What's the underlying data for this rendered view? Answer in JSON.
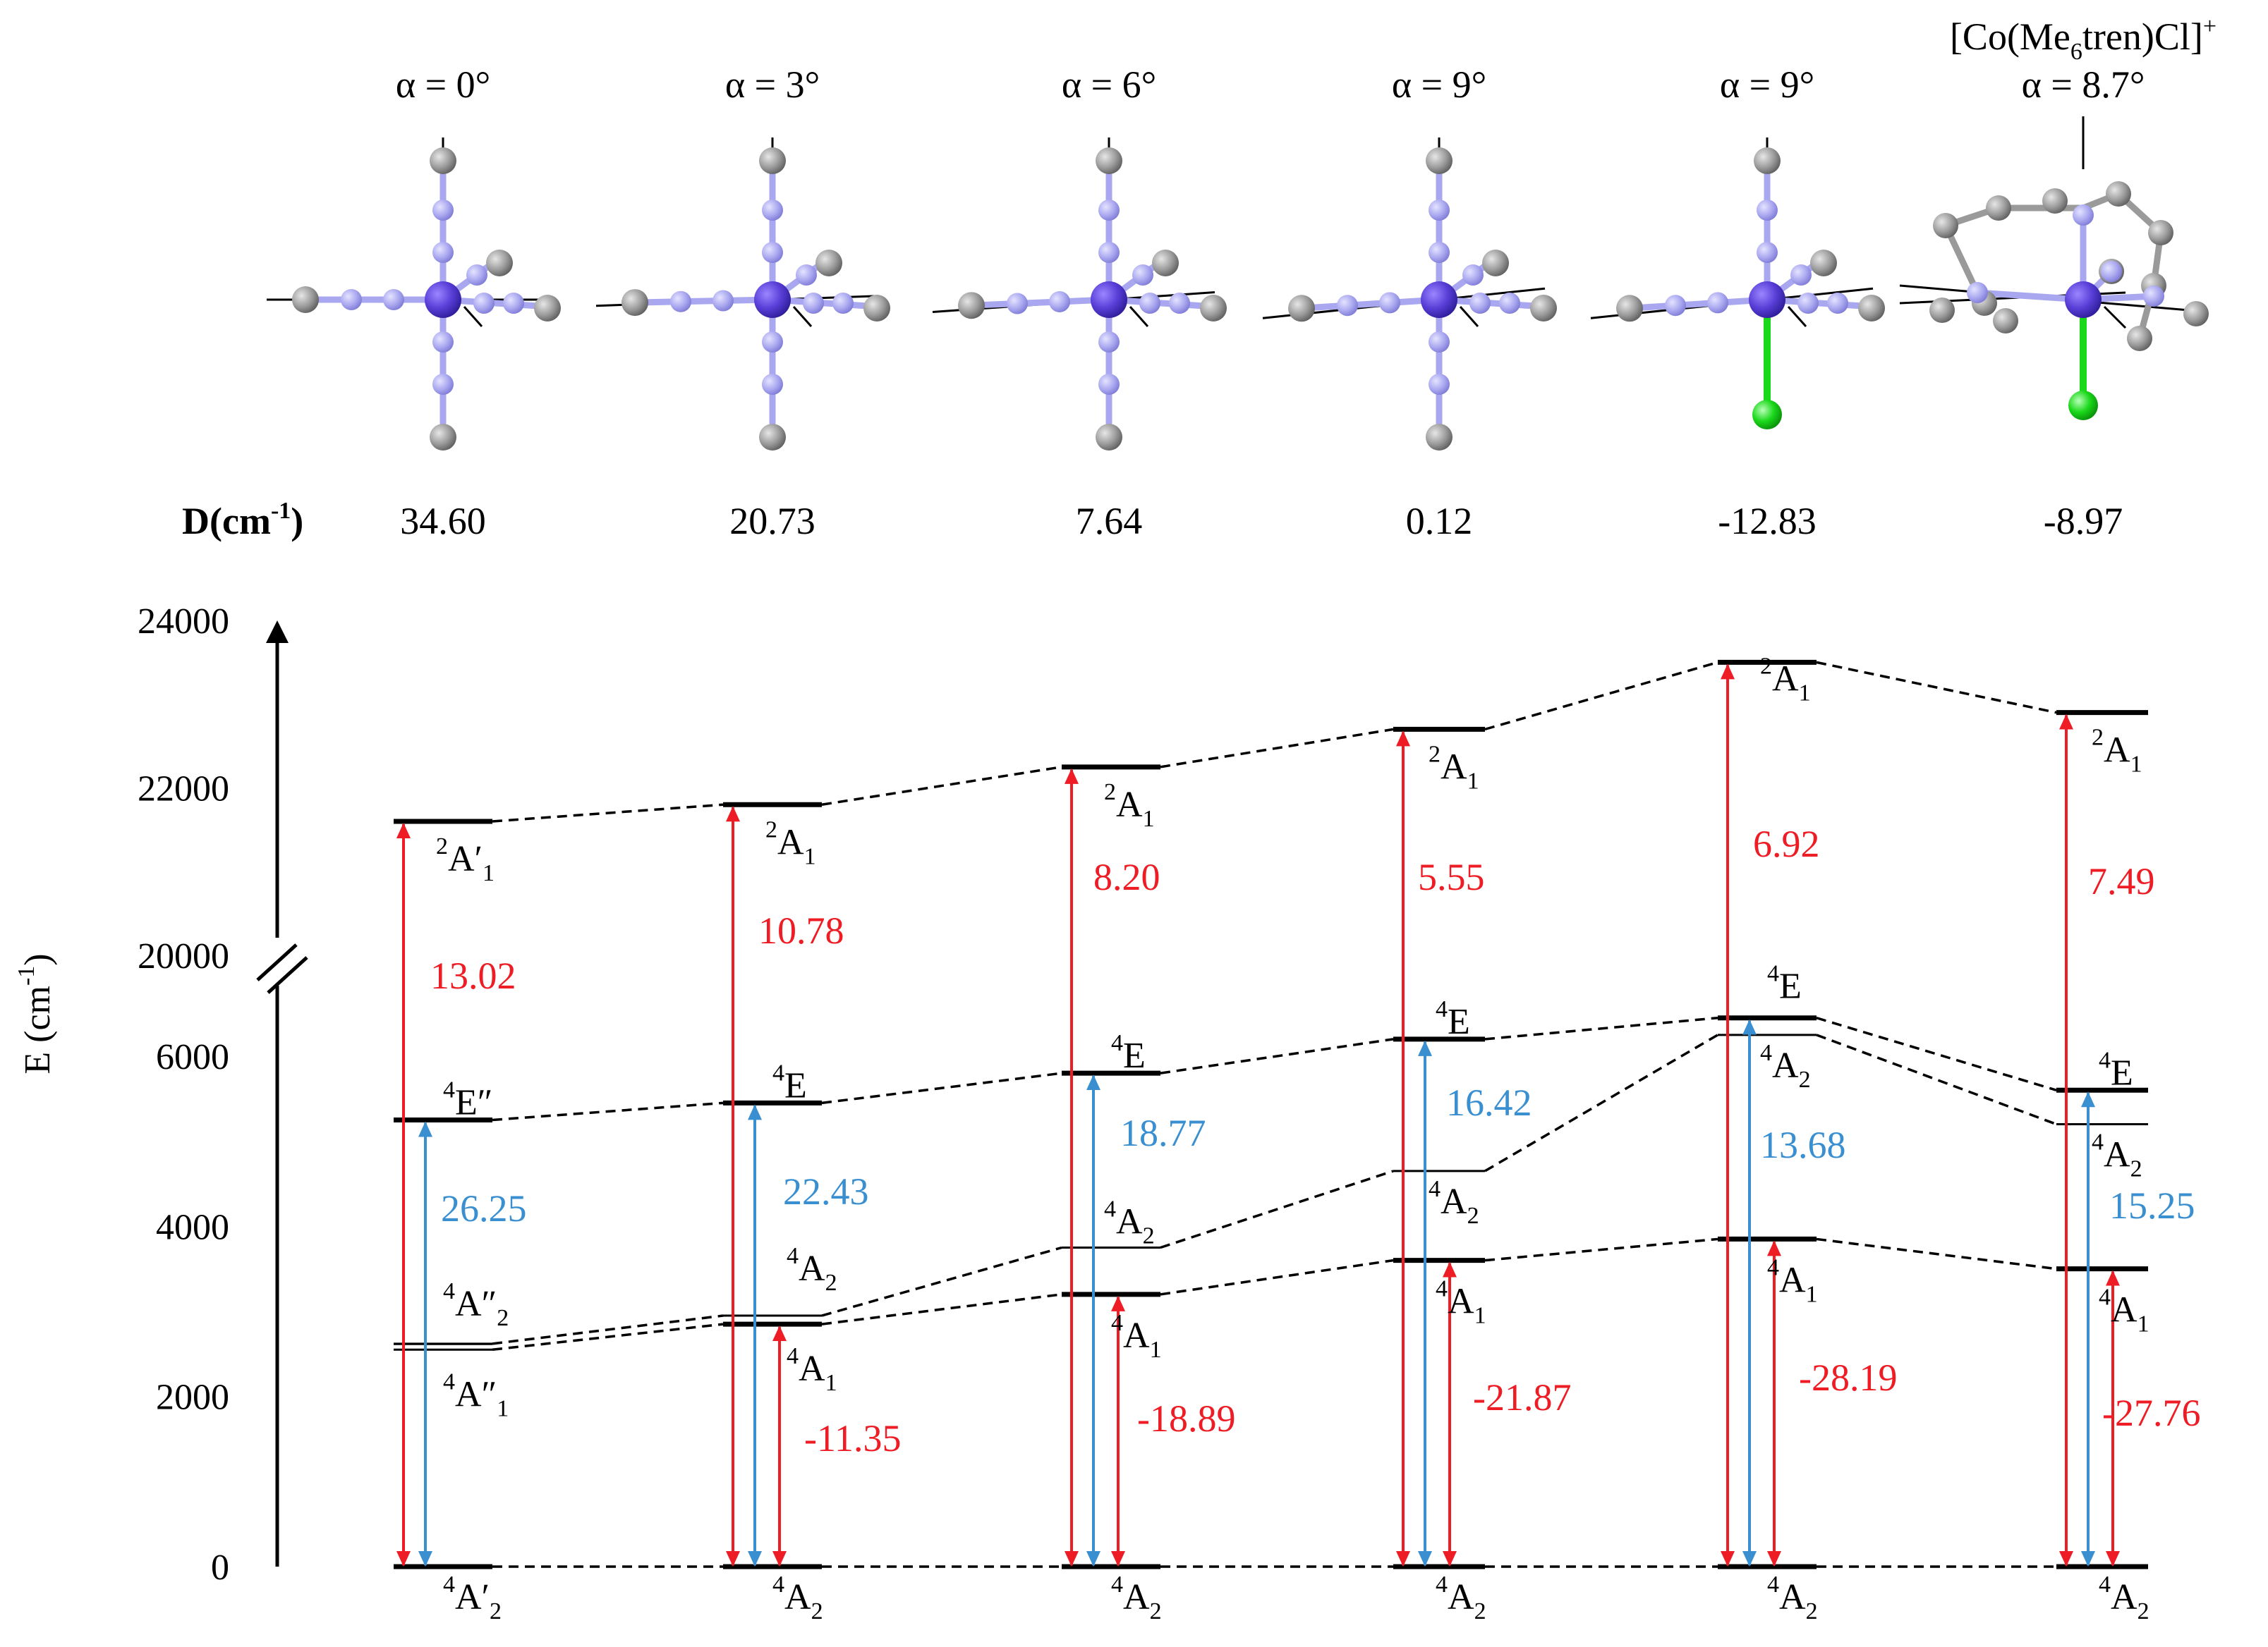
{
  "structures": {
    "compound_label": {
      "main": "[Co(Me",
      "sub": "6",
      "tail": "tren)Cl]",
      "sup": "+"
    },
    "alpha_labels": [
      "α = 0°",
      "α = 3°",
      "α = 6°",
      "α = 9°",
      "α = 9°",
      "α = 8.7°"
    ],
    "d_label": {
      "main": "D(cm",
      "sup": "-1",
      "tail": ")"
    },
    "d_values": [
      "34.60",
      "20.73",
      "7.64",
      "0.12",
      "-12.83",
      "-8.97"
    ]
  },
  "y_axis": {
    "label": {
      "main": "E (cm",
      "sup": "-1",
      "tail": ")"
    },
    "ticks": [
      "0",
      "2000",
      "4000",
      "6000",
      "20000",
      "22000",
      "24000"
    ]
  },
  "colors": {
    "red": "#ee1c24",
    "blue": "#3a8fd0",
    "atom_n": "#a9a7ef",
    "atom_co": "#5a3fd8",
    "atom_c": "#8c8c8c",
    "atom_cl": "#1ad81a"
  },
  "levels": [
    {
      "ground": {
        "t": "A",
        "sup": "4",
        "sub": "2",
        "prime": "′"
      },
      "ex1": {
        "t": "A",
        "sup": "4",
        "sub": "1",
        "prime": "″"
      },
      "ex2": {
        "t": "A",
        "sup": "4",
        "sub": "2",
        "prime": "″"
      },
      "ex3": {
        "t": "E",
        "sup": "4",
        "sub": "",
        "prime": "″"
      },
      "doublet": {
        "t": "A",
        "sup": "2",
        "sub": "1",
        "prime": "′"
      }
    },
    {
      "ground": {
        "t": "A",
        "sup": "4",
        "sub": "2",
        "prime": ""
      },
      "ex1": {
        "t": "A",
        "sup": "4",
        "sub": "1",
        "prime": ""
      },
      "ex2": {
        "t": "A",
        "sup": "4",
        "sub": "2",
        "prime": ""
      },
      "ex3": {
        "t": "E",
        "sup": "4",
        "sub": "",
        "prime": ""
      },
      "doublet": {
        "t": "A",
        "sup": "2",
        "sub": "1",
        "prime": ""
      }
    },
    {
      "ground": {
        "t": "A",
        "sup": "4",
        "sub": "2",
        "prime": ""
      },
      "ex1": {
        "t": "A",
        "sup": "4",
        "sub": "1",
        "prime": ""
      },
      "ex2": {
        "t": "A",
        "sup": "4",
        "sub": "2",
        "prime": ""
      },
      "ex3": {
        "t": "E",
        "sup": "4",
        "sub": "",
        "prime": ""
      },
      "doublet": {
        "t": "A",
        "sup": "2",
        "sub": "1",
        "prime": ""
      }
    },
    {
      "ground": {
        "t": "A",
        "sup": "4",
        "sub": "2",
        "prime": ""
      },
      "ex1": {
        "t": "A",
        "sup": "4",
        "sub": "1",
        "prime": ""
      },
      "ex2": {
        "t": "A",
        "sup": "4",
        "sub": "2",
        "prime": ""
      },
      "ex3": {
        "t": "E",
        "sup": "4",
        "sub": "",
        "prime": ""
      },
      "doublet": {
        "t": "A",
        "sup": "2",
        "sub": "1",
        "prime": ""
      }
    },
    {
      "ground": {
        "t": "A",
        "sup": "4",
        "sub": "2",
        "prime": ""
      },
      "ex1": {
        "t": "A",
        "sup": "4",
        "sub": "1",
        "prime": ""
      },
      "ex2": {
        "t": "A",
        "sup": "4",
        "sub": "2",
        "prime": ""
      },
      "ex3": {
        "t": "E",
        "sup": "4",
        "sub": "",
        "prime": ""
      },
      "doublet": {
        "t": "A",
        "sup": "2",
        "sub": "1",
        "prime": ""
      }
    },
    {
      "ground": {
        "t": "A",
        "sup": "4",
        "sub": "2",
        "prime": ""
      },
      "ex1": {
        "t": "A",
        "sup": "4",
        "sub": "1",
        "prime": ""
      },
      "ex2": {
        "t": "A",
        "sup": "4",
        "sub": "2",
        "prime": ""
      },
      "ex3": {
        "t": "E",
        "sup": "4",
        "sub": "",
        "prime": ""
      },
      "doublet": {
        "t": "A",
        "sup": "2",
        "sub": "1",
        "prime": ""
      }
    }
  ],
  "energies": {
    "ex1": [
      2550,
      2850,
      3200,
      3600,
      3850,
      3500
    ],
    "ex2": [
      2620,
      2950,
      3750,
      4650,
      6250,
      5200
    ],
    "ex3": [
      5250,
      5450,
      5800,
      6200,
      6450,
      5600
    ],
    "doublet": [
      21600,
      21800,
      22250,
      22700,
      23500,
      22900
    ]
  },
  "contributions": {
    "red_high": [
      "13.02",
      "10.78",
      "8.20",
      "5.55",
      "6.92",
      "7.49"
    ],
    "blue": [
      "26.25",
      "22.43",
      "18.77",
      "16.42",
      "13.68",
      "15.25"
    ],
    "red_low": [
      "",
      "-11.35",
      "-18.89",
      "-21.87",
      "-28.19",
      "-27.76"
    ]
  }
}
